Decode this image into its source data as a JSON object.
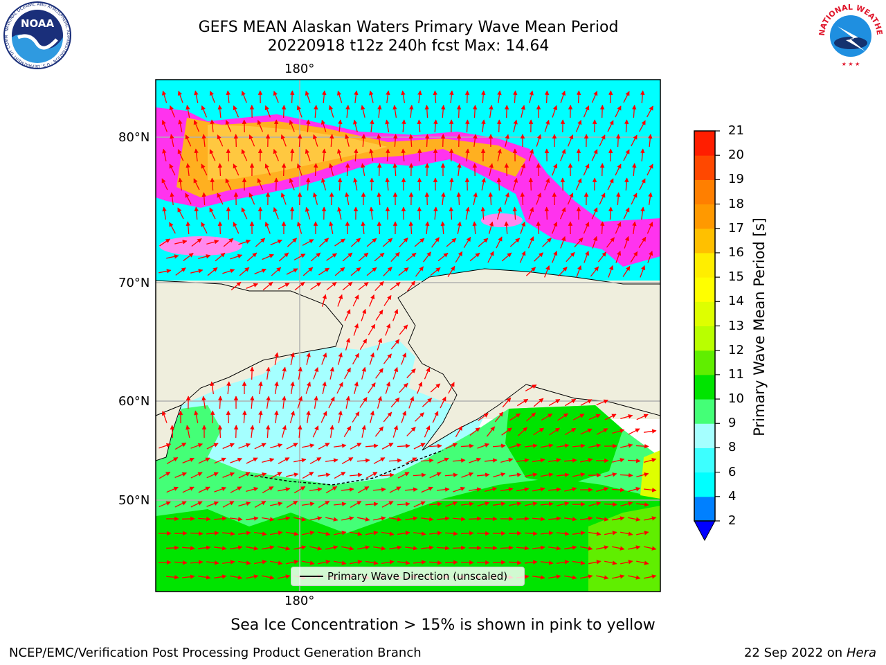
{
  "header": {
    "title_line1": "GEFS MEAN Alaskan Waters Primary Wave Mean Period",
    "title_line2": "20220918 t12z 240h fcst   Max: 14.64"
  },
  "map": {
    "lon_label": "180°",
    "lat_labels": [
      "80°N",
      "70°N",
      "60°N",
      "50°N"
    ],
    "land_color": "#efeedd",
    "grid_color": "#b0b0b0"
  },
  "colorbar": {
    "title": "Primary Wave Mean Period [s]",
    "levels": [
      "2",
      "4",
      "6",
      "8",
      "9",
      "10",
      "11",
      "12",
      "13",
      "14",
      "15",
      "16",
      "17",
      "18",
      "19",
      "20",
      "21"
    ],
    "colors": [
      "#0080ff",
      "#00ffff",
      "#3dffff",
      "#a5ffff",
      "#44ff77",
      "#00e400",
      "#60ee00",
      "#b9ff00",
      "#deff00",
      "#ffff00",
      "#ffee00",
      "#ffc000",
      "#ff9900",
      "#ff7f00",
      "#ff4800",
      "#ff1e00"
    ],
    "under_color": "#0000ff"
  },
  "legend": {
    "label": "Primary Wave Direction (unscaled)"
  },
  "footer": {
    "note": "Sea Ice Concentration > 15% is shown in pink to yellow",
    "credit": "NCEP/EMC/Verification Post Processing Product Generation Branch",
    "date": "22 Sep 2022 on",
    "machine": "Hera"
  },
  "logos": {
    "noaa_text": "NOAA",
    "noaa_ring": "NATIONAL OCEANIC AND ATMOSPHERIC ADMINISTRATION · U.S. DEPARTMENT OF COMMERCE",
    "nws_ring": "NATIONAL WEATHER SERVICE"
  },
  "arrow_color": "#ff0000"
}
